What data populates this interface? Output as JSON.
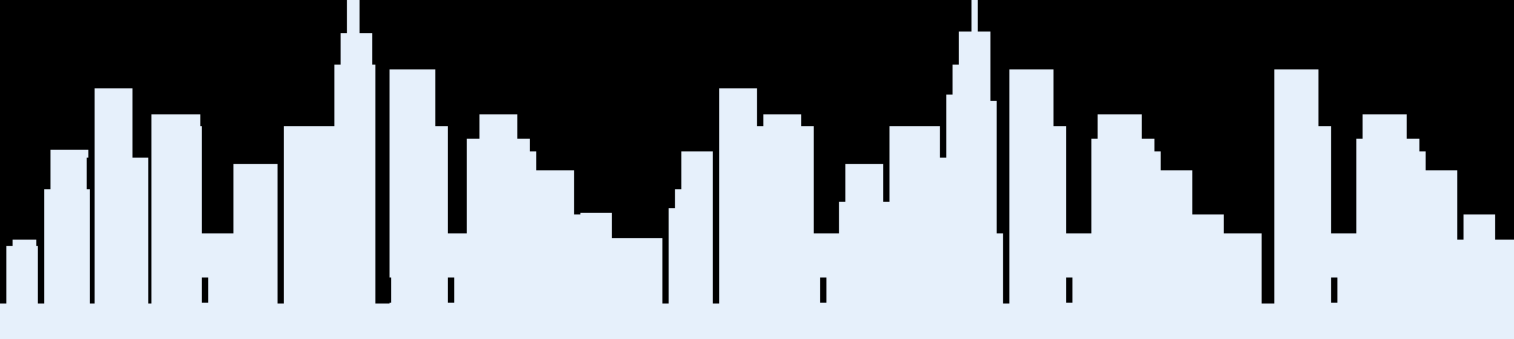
{
  "scene": {
    "background_color": "#000000",
    "silhouette_color": "#e6f0fb",
    "description_visible_text": ""
  }
}
